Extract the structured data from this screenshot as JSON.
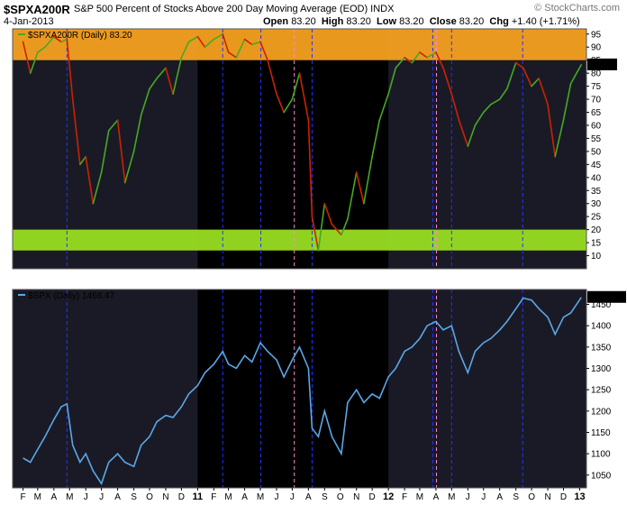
{
  "header": {
    "symbol": "$SPXA200R",
    "description": "S&P 500 Percent of Stocks Above 200 Day Moving Average (EOD)",
    "exchange": "INDX",
    "date": "4-Jan-2013",
    "open_label": "Open",
    "open": "83.20",
    "high_label": "High",
    "high": "83.20",
    "low_label": "Low",
    "low": "83.20",
    "close_label": "Close",
    "close": "83.20",
    "chg_label": "Chg",
    "chg": "+1.40 (+1.71%)",
    "brand": "© StockCharts.com"
  },
  "colors": {
    "upper_band": "#f5a020",
    "lower_band": "#99dd22",
    "up_stroke": "#44aa22",
    "down_stroke": "#cc2200",
    "spx_line": "#5aa8e8",
    "dark_bg": "#1a1a26",
    "black_bg": "#000000",
    "blue_marker": "#2233ff",
    "pink_marker": "#ff88cc"
  },
  "chart_data": [
    {
      "type": "line",
      "legend": "$SPXA200R (Daily) 83.20",
      "last_value_label": "83.20",
      "ylim": [
        5,
        97
      ],
      "yticks": [
        10,
        15,
        20,
        25,
        30,
        35,
        40,
        45,
        50,
        55,
        60,
        65,
        70,
        75,
        80,
        85,
        90,
        95
      ],
      "bands": [
        {
          "from": 85,
          "to": 97
        },
        {
          "from": 12,
          "to": 20
        }
      ],
      "x": [
        "2010-02-01",
        "2010-02-15",
        "2010-03-01",
        "2010-03-15",
        "2010-04-01",
        "2010-04-15",
        "2010-04-26",
        "2010-05-07",
        "2010-05-21",
        "2010-06-01",
        "2010-06-15",
        "2010-07-01",
        "2010-07-15",
        "2010-08-01",
        "2010-08-15",
        "2010-09-01",
        "2010-09-15",
        "2010-10-01",
        "2010-10-15",
        "2010-11-01",
        "2010-11-15",
        "2010-12-01",
        "2010-12-15",
        "2011-01-01",
        "2011-01-15",
        "2011-02-01",
        "2011-02-18",
        "2011-03-01",
        "2011-03-16",
        "2011-04-01",
        "2011-04-15",
        "2011-05-01",
        "2011-05-15",
        "2011-06-01",
        "2011-06-15",
        "2011-07-01",
        "2011-07-15",
        "2011-08-01",
        "2011-08-08",
        "2011-08-20",
        "2011-09-01",
        "2011-09-15",
        "2011-10-03",
        "2011-10-15",
        "2011-11-01",
        "2011-11-15",
        "2011-12-01",
        "2011-12-15",
        "2012-01-01",
        "2012-01-15",
        "2012-02-01",
        "2012-02-15",
        "2012-03-01",
        "2012-03-15",
        "2012-04-01",
        "2012-04-15",
        "2012-05-01",
        "2012-05-15",
        "2012-06-01",
        "2012-06-15",
        "2012-07-01",
        "2012-07-15",
        "2012-08-01",
        "2012-08-15",
        "2012-09-01",
        "2012-09-15",
        "2012-10-01",
        "2012-10-15",
        "2012-11-01",
        "2012-11-15",
        "2012-12-01",
        "2012-12-15",
        "2013-01-04"
      ],
      "values": [
        92,
        80,
        88,
        90,
        94,
        92,
        93,
        70,
        45,
        48,
        30,
        42,
        58,
        62,
        38,
        50,
        64,
        74,
        78,
        82,
        72,
        86,
        92,
        94,
        90,
        93,
        95,
        88,
        86,
        93,
        91,
        92,
        85,
        72,
        65,
        70,
        80,
        62,
        25,
        12,
        30,
        22,
        18,
        24,
        42,
        30,
        48,
        62,
        72,
        82,
        86,
        84,
        88,
        86,
        88,
        82,
        72,
        62,
        52,
        60,
        65,
        68,
        70,
        74,
        84,
        82,
        75,
        78,
        68,
        48,
        62,
        76,
        83.2
      ]
    },
    {
      "type": "line",
      "legend": "$SPX (Daily) 1466.47",
      "last_value_label": "1466.47",
      "ylim": [
        1020,
        1485
      ],
      "yticks": [
        1050,
        1100,
        1150,
        1200,
        1250,
        1300,
        1350,
        1400,
        1450
      ],
      "x": [
        "2010-02-01",
        "2010-02-15",
        "2010-03-01",
        "2010-03-15",
        "2010-04-01",
        "2010-04-15",
        "2010-04-26",
        "2010-05-07",
        "2010-05-21",
        "2010-06-01",
        "2010-06-15",
        "2010-07-01",
        "2010-07-15",
        "2010-08-01",
        "2010-08-15",
        "2010-09-01",
        "2010-09-15",
        "2010-10-01",
        "2010-10-15",
        "2010-11-01",
        "2010-11-15",
        "2010-12-01",
        "2010-12-15",
        "2011-01-01",
        "2011-01-15",
        "2011-02-01",
        "2011-02-18",
        "2011-03-01",
        "2011-03-16",
        "2011-04-01",
        "2011-04-15",
        "2011-05-01",
        "2011-05-15",
        "2011-06-01",
        "2011-06-15",
        "2011-07-01",
        "2011-07-15",
        "2011-08-01",
        "2011-08-08",
        "2011-08-20",
        "2011-09-01",
        "2011-09-15",
        "2011-10-03",
        "2011-10-15",
        "2011-11-01",
        "2011-11-15",
        "2011-12-01",
        "2011-12-15",
        "2012-01-01",
        "2012-01-15",
        "2012-02-01",
        "2012-02-15",
        "2012-03-01",
        "2012-03-15",
        "2012-04-01",
        "2012-04-15",
        "2012-05-01",
        "2012-05-15",
        "2012-06-01",
        "2012-06-15",
        "2012-07-01",
        "2012-07-15",
        "2012-08-01",
        "2012-08-15",
        "2012-09-01",
        "2012-09-15",
        "2012-10-01",
        "2012-10-15",
        "2012-11-01",
        "2012-11-15",
        "2012-12-01",
        "2012-12-15",
        "2013-01-04"
      ],
      "values": [
        1090,
        1080,
        1110,
        1140,
        1180,
        1210,
        1217,
        1120,
        1080,
        1100,
        1060,
        1030,
        1080,
        1100,
        1080,
        1070,
        1120,
        1140,
        1175,
        1190,
        1185,
        1210,
        1240,
        1260,
        1290,
        1310,
        1340,
        1310,
        1300,
        1330,
        1315,
        1360,
        1340,
        1320,
        1280,
        1320,
        1350,
        1300,
        1160,
        1140,
        1200,
        1140,
        1100,
        1220,
        1250,
        1220,
        1240,
        1230,
        1280,
        1300,
        1340,
        1350,
        1370,
        1400,
        1410,
        1390,
        1400,
        1340,
        1290,
        1340,
        1360,
        1370,
        1390,
        1410,
        1440,
        1465,
        1460,
        1440,
        1420,
        1380,
        1420,
        1430,
        1466.47
      ]
    }
  ],
  "x_axis": {
    "months": [
      {
        "date": "2010-02-01",
        "label": "F"
      },
      {
        "date": "2010-03-01",
        "label": "M"
      },
      {
        "date": "2010-04-01",
        "label": "A"
      },
      {
        "date": "2010-05-01",
        "label": "M"
      },
      {
        "date": "2010-06-01",
        "label": "J"
      },
      {
        "date": "2010-07-01",
        "label": "J"
      },
      {
        "date": "2010-08-01",
        "label": "A"
      },
      {
        "date": "2010-09-01",
        "label": "S"
      },
      {
        "date": "2010-10-01",
        "label": "O"
      },
      {
        "date": "2010-11-01",
        "label": "N"
      },
      {
        "date": "2010-12-01",
        "label": "D"
      },
      {
        "date": "2011-01-01",
        "label": "11"
      },
      {
        "date": "2011-02-01",
        "label": "F"
      },
      {
        "date": "2011-03-01",
        "label": "M"
      },
      {
        "date": "2011-04-01",
        "label": "A"
      },
      {
        "date": "2011-05-01",
        "label": "M"
      },
      {
        "date": "2011-06-01",
        "label": "J"
      },
      {
        "date": "2011-07-01",
        "label": "J"
      },
      {
        "date": "2011-08-01",
        "label": "A"
      },
      {
        "date": "2011-09-01",
        "label": "S"
      },
      {
        "date": "2011-10-01",
        "label": "O"
      },
      {
        "date": "2011-11-01",
        "label": "N"
      },
      {
        "date": "2011-12-01",
        "label": "D"
      },
      {
        "date": "2012-01-01",
        "label": "12"
      },
      {
        "date": "2012-02-01",
        "label": "F"
      },
      {
        "date": "2012-03-01",
        "label": "M"
      },
      {
        "date": "2012-04-01",
        "label": "A"
      },
      {
        "date": "2012-05-01",
        "label": "M"
      },
      {
        "date": "2012-06-01",
        "label": "J"
      },
      {
        "date": "2012-07-01",
        "label": "J"
      },
      {
        "date": "2012-08-01",
        "label": "A"
      },
      {
        "date": "2012-09-01",
        "label": "S"
      },
      {
        "date": "2012-10-01",
        "label": "O"
      },
      {
        "date": "2012-11-01",
        "label": "N"
      },
      {
        "date": "2012-12-01",
        "label": "D"
      },
      {
        "date": "2013-01-01",
        "label": "13"
      }
    ],
    "shaded_periods": [
      {
        "from": "2011-01-01",
        "to": "2012-01-01"
      }
    ],
    "blue_markers": [
      "2010-04-26",
      "2011-02-18",
      "2011-05-02",
      "2011-08-08",
      "2012-03-26",
      "2012-05-01",
      "2012-09-14"
    ],
    "pink_markers": [
      "2011-07-05",
      "2012-04-02"
    ]
  }
}
